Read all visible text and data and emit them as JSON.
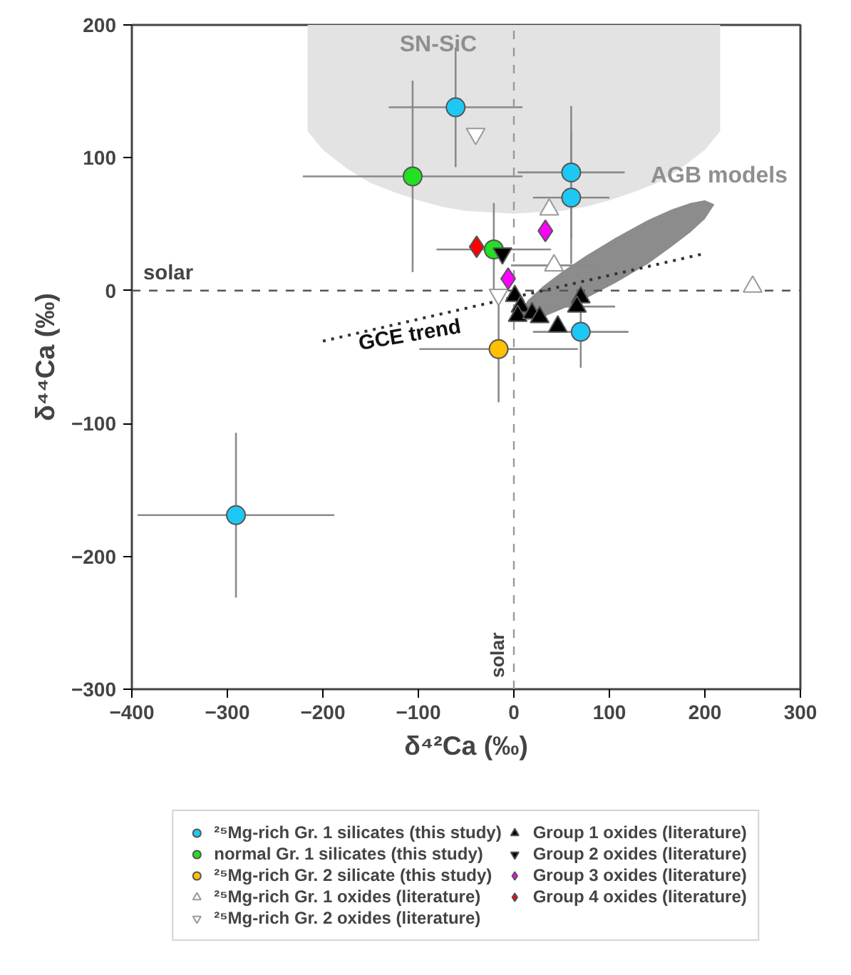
{
  "chart_data": {
    "type": "scatter",
    "xlabel": "δ⁴²Ca (‰)",
    "ylabel": "δ⁴⁴Ca (‰)",
    "xlim": [
      -400,
      300
    ],
    "xticks": [
      -400,
      -300,
      -200,
      -100,
      0,
      100,
      200,
      300
    ],
    "ylim": [
      -300,
      200
    ],
    "yticks": [
      -300,
      -200,
      -100,
      0,
      100,
      200
    ],
    "grid": false,
    "legend": "bottom",
    "ref_lines": [
      {
        "axis": "y",
        "value": 0,
        "label": "solar",
        "color": "#555555",
        "line_style": "dashed"
      },
      {
        "axis": "x",
        "value": 0,
        "label": "solar",
        "color": "#999999",
        "line_style": "dashed"
      }
    ],
    "annotations": [
      "SN-SiC",
      "AGB models",
      "GCE trend"
    ],
    "series": [
      {
        "type": "area",
        "color": "#e3e3e3",
        "x": [
          -216,
          -200,
          -175,
          -150,
          -125,
          -100,
          -75,
          -50,
          -25,
          0,
          25,
          50,
          75,
          100,
          125,
          150,
          175,
          200,
          216,
          216,
          -216
        ],
        "values": [
          120,
          106,
          92,
          81,
          74,
          68,
          63,
          60,
          59,
          58,
          59,
          60,
          63,
          68,
          74,
          81,
          92,
          106,
          120,
          200,
          200
        ]
      },
      {
        "type": "area",
        "color": "#8c8c8c",
        "x": [
          4,
          15,
          30,
          50,
          75,
          107,
          140,
          165,
          185,
          200,
          210,
          200,
          185,
          165,
          140,
          107,
          75,
          50,
          30,
          15
        ],
        "values": [
          -19,
          -22,
          -20,
          -14,
          -6,
          6,
          20,
          33,
          44,
          54,
          65,
          68,
          66,
          61,
          53,
          40,
          26,
          14,
          3,
          -7
        ]
      },
      {
        "type": "line",
        "color": "#333333",
        "line_style": "dotted",
        "x": [
          -200,
          200
        ],
        "values": [
          -38,
          28
        ]
      },
      {
        "name": "²⁵Mg-rich Gr. 1 silicates (this study)",
        "color": "#1ec8f5",
        "marker": "circle",
        "x": [
          -61,
          60,
          60,
          70,
          -291
        ],
        "values": [
          138,
          89,
          70,
          -31,
          -169
        ],
        "errors": [
          45,
          50,
          50,
          27,
          62
        ],
        "xerrors": [
          70,
          56,
          40,
          50,
          103
        ]
      },
      {
        "name": "normal Gr. 1 silicates (this study)",
        "color": "#22e022",
        "marker": "circle",
        "x": [
          -106,
          -21
        ],
        "values": [
          86,
          31
        ],
        "errors": [
          72,
          35
        ],
        "xerrors": [
          115,
          60
        ]
      },
      {
        "name": "²⁵Mg-rich Gr. 2 silicate (this study)",
        "color": "#ffc000",
        "marker": "circle",
        "x": [
          -16
        ],
        "values": [
          -44
        ],
        "errors": [
          40
        ],
        "xerrors": [
          83
        ]
      },
      {
        "name": "²⁵Mg-rich Gr. 1 oxides (literature)",
        "color": "#ffffff",
        "marker": "triangle",
        "x": [
          37,
          42,
          250
        ],
        "values": [
          61,
          19,
          3
        ],
        "xerrors": [
          null,
          45,
          null
        ]
      },
      {
        "name": "²⁵Mg-rich Gr. 2 oxides (literature)",
        "color": "#ffffff",
        "marker": "triangle_down",
        "x": [
          -40,
          -16
        ],
        "values": [
          118,
          -3
        ]
      },
      {
        "name": "Group 1 oxides (literature)",
        "color": "#000000",
        "marker": "triangle",
        "x": [
          1,
          7,
          4,
          19,
          27,
          46,
          70,
          66
        ],
        "values": [
          -4,
          -12,
          -19,
          -17,
          -20,
          -27,
          -5,
          -12
        ],
        "xerrors": [
          null,
          null,
          null,
          null,
          null,
          null,
          null,
          40
        ]
      },
      {
        "name": "Group 2 oxides (literature)",
        "color": "#000000",
        "marker": "triangle_down",
        "x": [
          -12
        ],
        "values": [
          28
        ]
      },
      {
        "name": "Group 3 oxides (literature)",
        "color": "#ff00ff",
        "marker": "diamond",
        "x": [
          33,
          -6
        ],
        "values": [
          45,
          9
        ]
      },
      {
        "name": "Group 4 oxides (literature)",
        "color": "#ff0000",
        "marker": "diamond",
        "x": [
          -39
        ],
        "values": [
          33
        ]
      }
    ]
  }
}
